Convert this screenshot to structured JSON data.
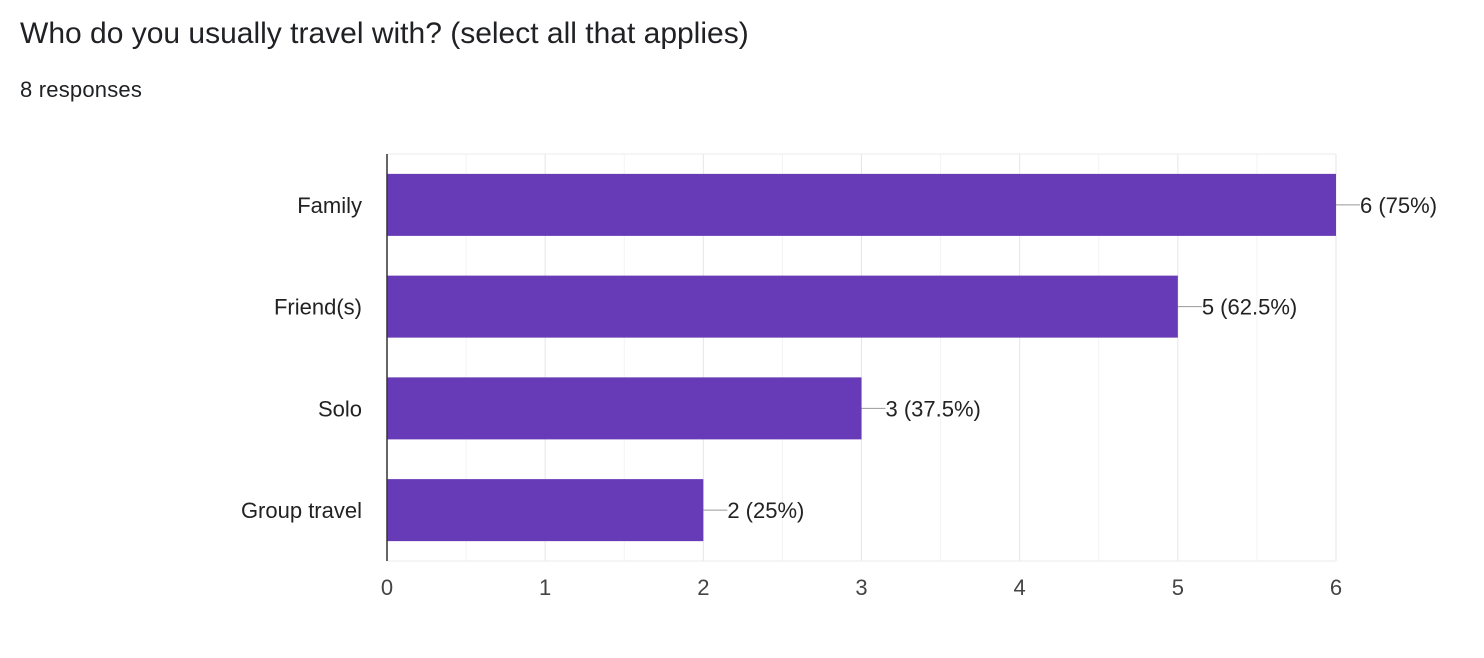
{
  "question": {
    "title": "Who do you usually travel with? (select all that applies)",
    "responses": "8 responses"
  },
  "colors": {
    "bar": "#673ab7",
    "gridline": "#ebebeb",
    "axis": "#333333",
    "label_text": "#222222",
    "connector": "#999999"
  },
  "chart_data": {
    "type": "bar",
    "orientation": "horizontal",
    "categories": [
      "Family",
      "Friend(s)",
      "Solo",
      "Group travel"
    ],
    "values": [
      6,
      5,
      3,
      2
    ],
    "data_labels": [
      "6 (75%)",
      "5 (62.5%)",
      "3 (37.5%)",
      "2 (25%)"
    ],
    "xlim": [
      0,
      6
    ],
    "x_ticks": [
      "0",
      "1",
      "2",
      "3",
      "4",
      "5",
      "6"
    ],
    "minor_gridlines": true,
    "grid": true,
    "legend": "none"
  }
}
